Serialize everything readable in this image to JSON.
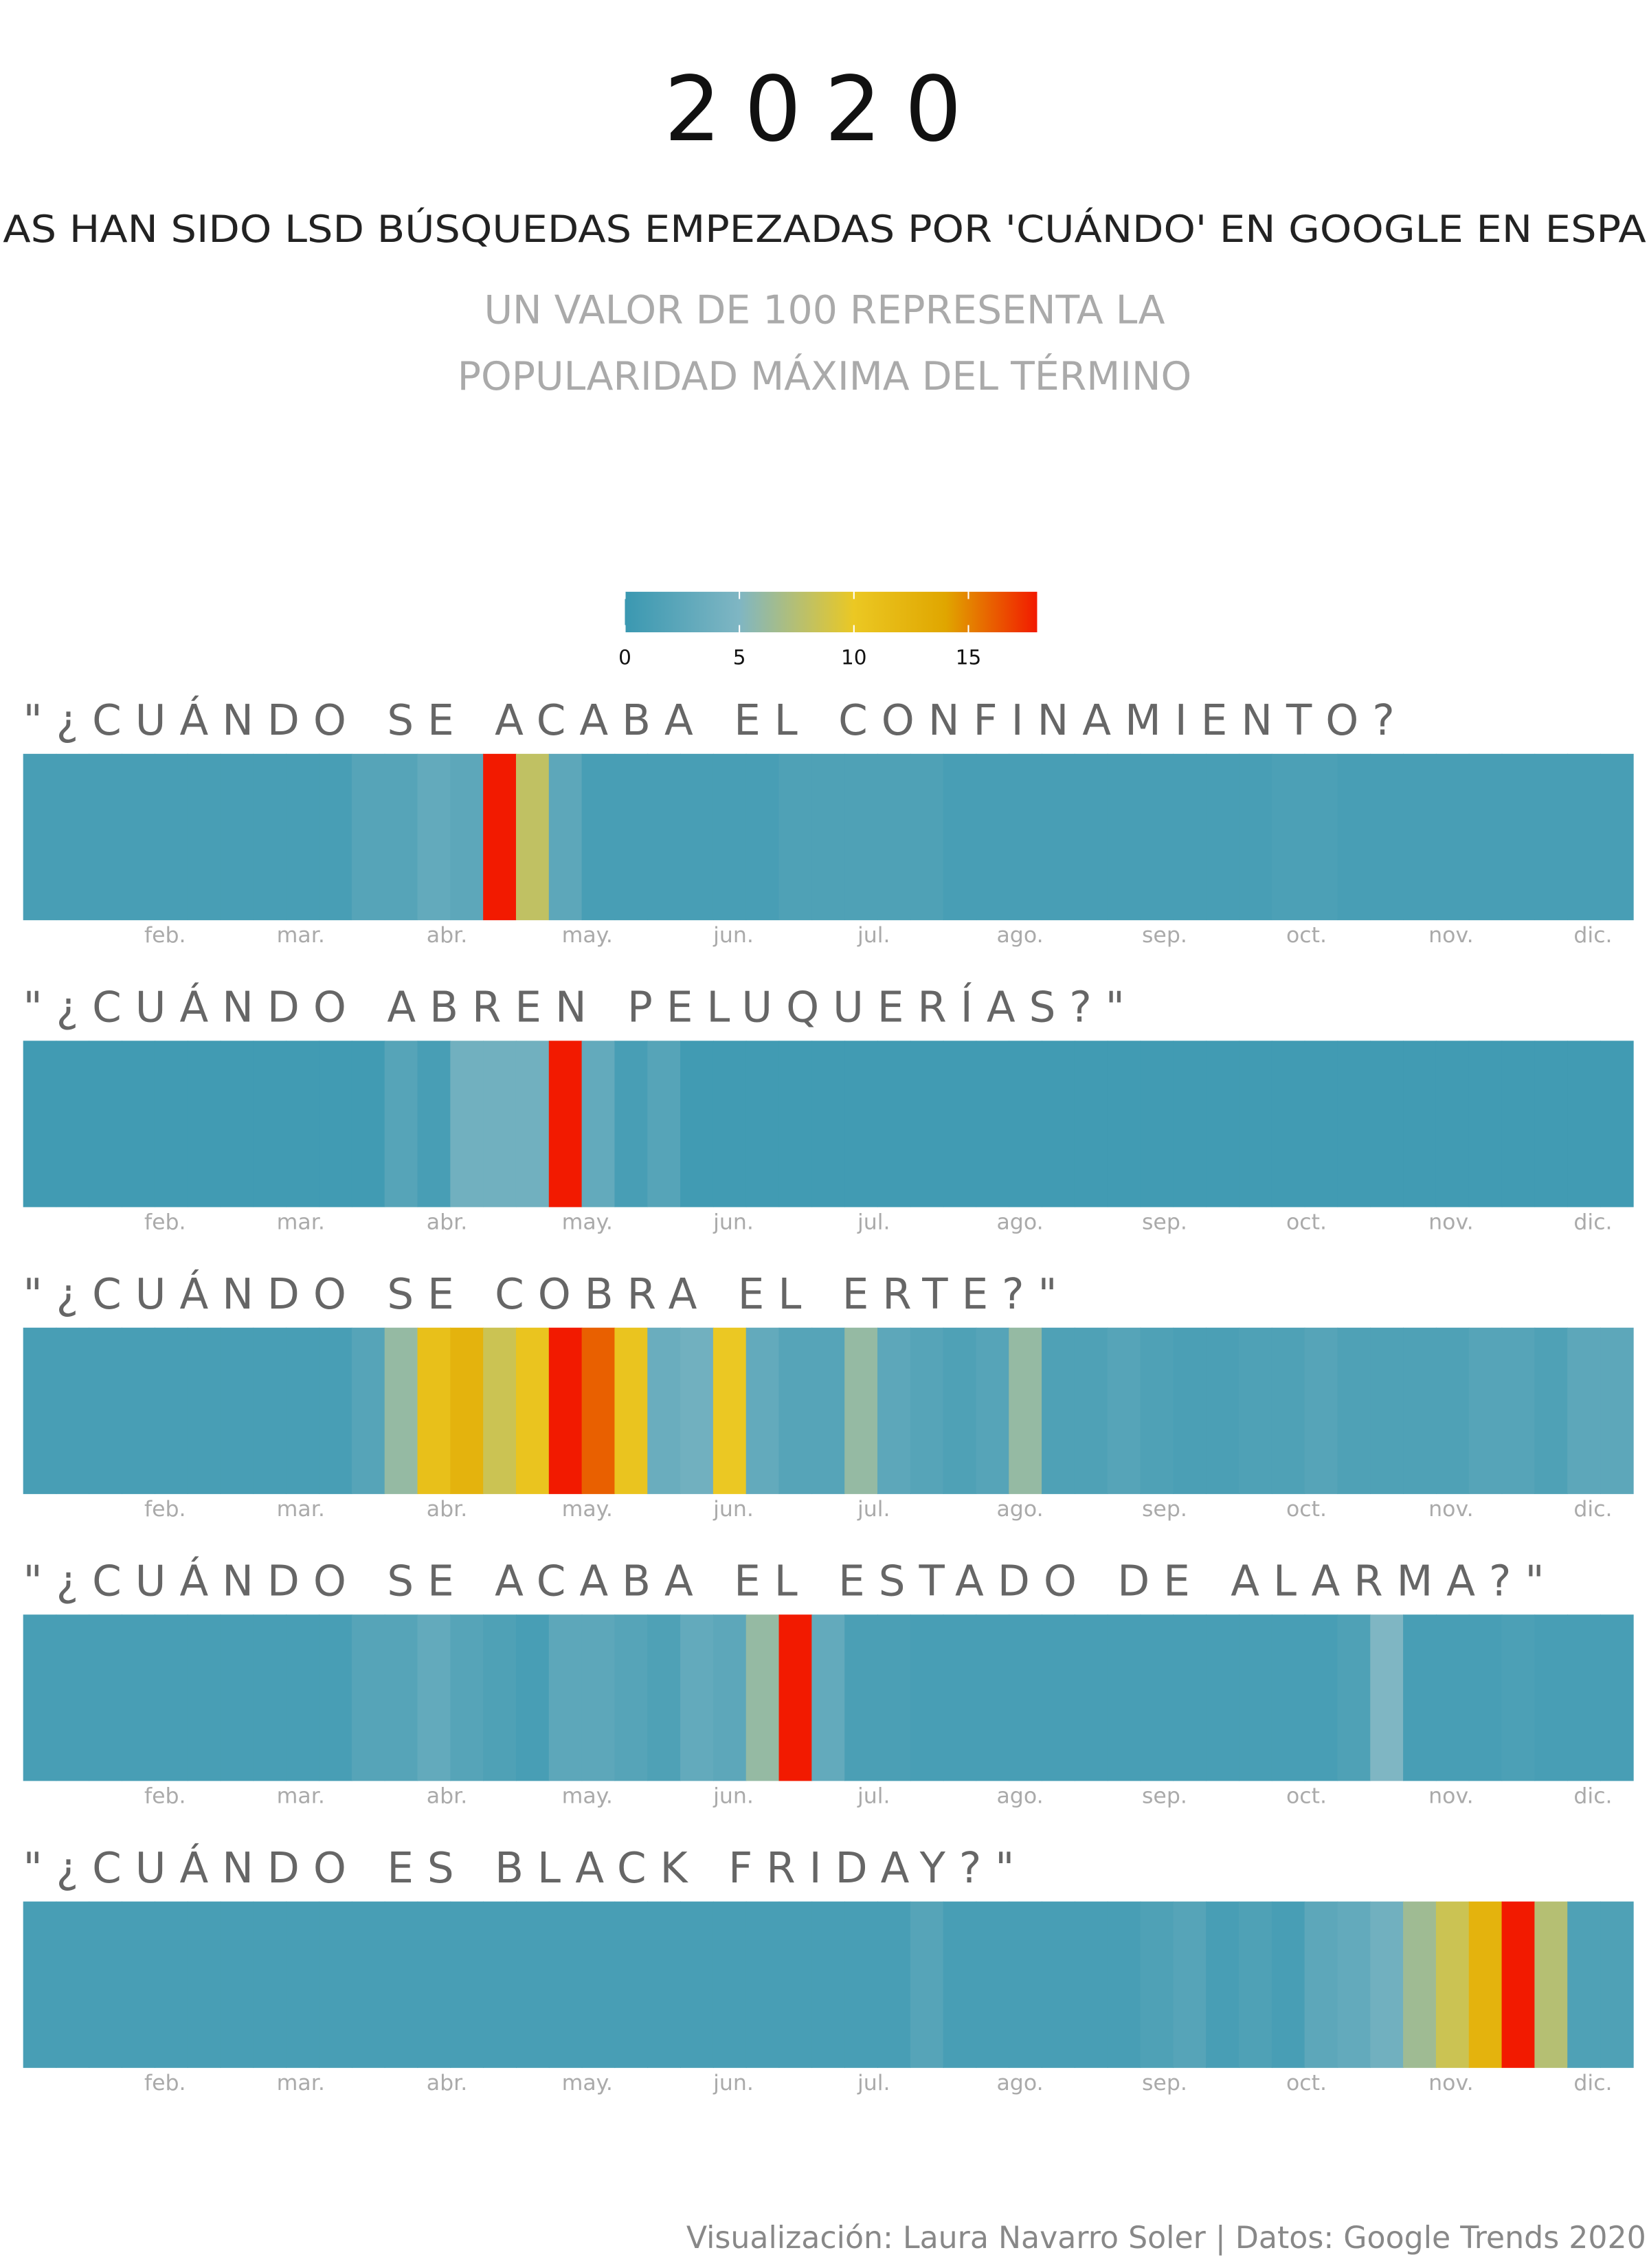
{
  "title": "2020",
  "subtitle": "AS HAN SIDO LSD BÚSQUEDAS EMPEZADAS POR 'CUÁNDO' EN GOOGLE EN ESPA",
  "note": [
    "UN VALOR DE 100 REPRESENTA LA",
    "POPULARIDAD MÁXIMA DEL TÉRMINO"
  ],
  "source": "Visualización: Laura Navarro Soler | Datos: Google Trends 2020",
  "color_scale": {
    "lim": [
      0,
      18
    ],
    "ticks": [
      0,
      5,
      10,
      15
    ],
    "stops": [
      {
        "value": 0,
        "color": "#3a98b1"
      },
      {
        "value": 5,
        "color": "#7fb6c3"
      },
      {
        "value": 10,
        "color": "#ebc823"
      },
      {
        "value": 14,
        "color": "#e0a600"
      },
      {
        "value": 18,
        "color": "#f21a00"
      }
    ]
  },
  "chart_data": [
    {
      "type": "heatmap",
      "title": "\"¿CUÁNDO SE ACABA EL CONFINAMIENTO?",
      "values": [
        1,
        1,
        1,
        1,
        1,
        1,
        1,
        1,
        1,
        1,
        2,
        2,
        3,
        2.5,
        18,
        8,
        2.5,
        1,
        1,
        1,
        1,
        1,
        1,
        1.5,
        1.5,
        1.5,
        1.5,
        1.5,
        1,
        1,
        1,
        1,
        1,
        1,
        1,
        1,
        1,
        1,
        1.3,
        1.3,
        1,
        1,
        1,
        1,
        1,
        1,
        1,
        1,
        1
      ],
      "xlim": [
        0,
        49
      ],
      "xticks": [
        {
          "value": 4.32,
          "label": "feb."
        },
        {
          "value": 8.45,
          "label": "mar."
        },
        {
          "value": 12.9,
          "label": "abr."
        },
        {
          "value": 17.17,
          "label": "may."
        },
        {
          "value": 21.62,
          "label": "jun."
        },
        {
          "value": 25.89,
          "label": "jul."
        },
        {
          "value": 30.34,
          "label": "ago."
        },
        {
          "value": 34.74,
          "label": "sep."
        },
        {
          "value": 39.06,
          "label": "oct."
        },
        {
          "value": 43.46,
          "label": "nov."
        },
        {
          "value": 47.78,
          "label": "dic."
        }
      ]
    },
    {
      "type": "heatmap",
      "title": "\"¿CUÁNDO ABREN PELUQUERÍAS?\"",
      "values": [
        0.5,
        0.5,
        0.5,
        0.5,
        0.5,
        0.5,
        0.5,
        0.5,
        0.5,
        0.5,
        0.5,
        2,
        1,
        4,
        4,
        4,
        18,
        3,
        1,
        2,
        0.5,
        0.5,
        0.5,
        0.5,
        0.5,
        0.5,
        0.5,
        0.5,
        0.5,
        0.5,
        0.5,
        0.5,
        0.5,
        0.5,
        0.5,
        0.5,
        0.5,
        0.5,
        0.5,
        0.5,
        0.5,
        0.5,
        0.5,
        0.5,
        0.5,
        0.5,
        0.5,
        0.5,
        0.5
      ],
      "xlim": [
        0,
        49
      ],
      "xticks": [
        {
          "value": 4.32,
          "label": "feb."
        },
        {
          "value": 8.45,
          "label": "mar."
        },
        {
          "value": 12.9,
          "label": "abr."
        },
        {
          "value": 17.17,
          "label": "may."
        },
        {
          "value": 21.62,
          "label": "jun."
        },
        {
          "value": 25.89,
          "label": "jul."
        },
        {
          "value": 30.34,
          "label": "ago."
        },
        {
          "value": 34.74,
          "label": "sep."
        },
        {
          "value": 39.06,
          "label": "oct."
        },
        {
          "value": 43.46,
          "label": "nov."
        },
        {
          "value": 47.78,
          "label": "dic."
        }
      ]
    },
    {
      "type": "heatmap",
      "title": "\"¿CUÁNDO SE COBRA EL ERTE?\"",
      "values": [
        1,
        1,
        1,
        1,
        1,
        1,
        1,
        1,
        1,
        1,
        2,
        6,
        11,
        12.5,
        8.5,
        10.5,
        18,
        16,
        10.5,
        3.5,
        4,
        10,
        3,
        2,
        2,
        6,
        2.5,
        2,
        1.5,
        2,
        6,
        1.5,
        1.5,
        2,
        1.5,
        1.2,
        1.2,
        1.5,
        1.5,
        2,
        1.5,
        1.5,
        1.5,
        1.5,
        2,
        2,
        1.5,
        2.5,
        2.5
      ],
      "xlim": [
        0,
        49
      ],
      "xticks": [
        {
          "value": 4.32,
          "label": "feb."
        },
        {
          "value": 8.45,
          "label": "mar."
        },
        {
          "value": 12.9,
          "label": "abr."
        },
        {
          "value": 17.17,
          "label": "may."
        },
        {
          "value": 21.62,
          "label": "jun."
        },
        {
          "value": 25.89,
          "label": "jul."
        },
        {
          "value": 30.34,
          "label": "ago."
        },
        {
          "value": 34.74,
          "label": "sep."
        },
        {
          "value": 39.06,
          "label": "oct."
        },
        {
          "value": 43.46,
          "label": "nov."
        },
        {
          "value": 47.78,
          "label": "dic."
        }
      ]
    },
    {
      "type": "heatmap",
      "title": "\"¿CUÁNDO SE ACABA EL ESTADO DE ALARMA?\"",
      "values": [
        1,
        1,
        1,
        1,
        1,
        1,
        1,
        1,
        1,
        1,
        2,
        2,
        3,
        2,
        1.5,
        1,
        2.5,
        2.5,
        2,
        1.5,
        3,
        2.5,
        6,
        18,
        3,
        1.2,
        1.2,
        1,
        1,
        1,
        1,
        1,
        1,
        1,
        1,
        1,
        1,
        1,
        1,
        1,
        1.5,
        5,
        1,
        1,
        1,
        1.3,
        1,
        1,
        1
      ],
      "xlim": [
        0,
        49
      ],
      "xticks": [
        {
          "value": 4.32,
          "label": "feb."
        },
        {
          "value": 8.45,
          "label": "mar."
        },
        {
          "value": 12.9,
          "label": "abr."
        },
        {
          "value": 17.17,
          "label": "may."
        },
        {
          "value": 21.62,
          "label": "jun."
        },
        {
          "value": 25.89,
          "label": "jul."
        },
        {
          "value": 30.34,
          "label": "ago."
        },
        {
          "value": 34.74,
          "label": "sep."
        },
        {
          "value": 39.06,
          "label": "oct."
        },
        {
          "value": 43.46,
          "label": "nov."
        },
        {
          "value": 47.78,
          "label": "dic."
        }
      ]
    },
    {
      "type": "heatmap",
      "title": "\"¿CUÁNDO ES BLACK FRIDAY?\"",
      "values": [
        1,
        1,
        1,
        1,
        1,
        1,
        1,
        1,
        1,
        1,
        1,
        1,
        1,
        1,
        1,
        1,
        1,
        1,
        1,
        1,
        1,
        1,
        1,
        1,
        1,
        1,
        1,
        2,
        1,
        1,
        1,
        1,
        1,
        1,
        1.5,
        2,
        1,
        1.5,
        1,
        2.5,
        3,
        4,
        6.5,
        8.5,
        12.5,
        18,
        7.5,
        1.5,
        1.5
      ],
      "xlim": [
        0,
        49
      ],
      "xticks": [
        {
          "value": 4.32,
          "label": "feb."
        },
        {
          "value": 8.45,
          "label": "mar."
        },
        {
          "value": 12.9,
          "label": "abr."
        },
        {
          "value": 17.17,
          "label": "may."
        },
        {
          "value": 21.62,
          "label": "jun."
        },
        {
          "value": 25.89,
          "label": "jul."
        },
        {
          "value": 30.34,
          "label": "ago."
        },
        {
          "value": 34.74,
          "label": "sep."
        },
        {
          "value": 39.06,
          "label": "oct."
        },
        {
          "value": 43.46,
          "label": "nov."
        },
        {
          "value": 47.78,
          "label": "dic."
        }
      ]
    }
  ]
}
